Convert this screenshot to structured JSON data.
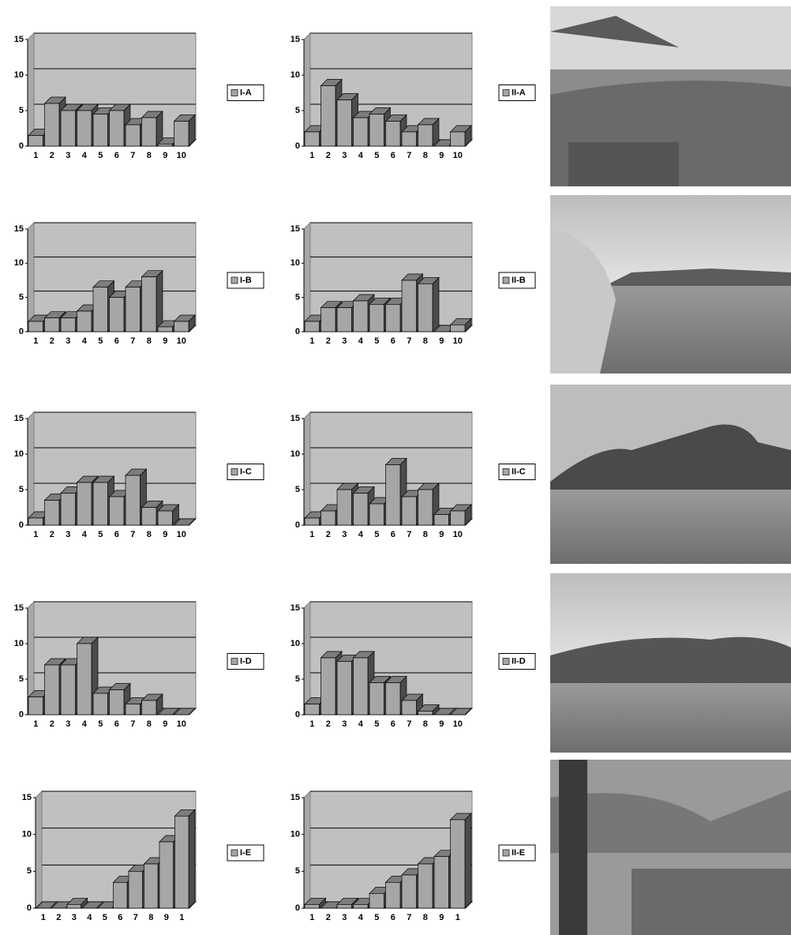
{
  "chart_data": [
    {
      "type": "bar",
      "categories": [
        "1",
        "2",
        "3",
        "4",
        "5",
        "6",
        "7",
        "8",
        "9",
        "10"
      ],
      "series": [
        {
          "name": "I-A",
          "color": "#a6a6a6",
          "values": [
            1.5,
            6,
            5,
            5,
            4.5,
            5,
            3,
            4,
            0.3,
            3.5
          ]
        }
      ],
      "ylim": [
        0,
        15
      ],
      "yticks": [
        0,
        5,
        10,
        15
      ],
      "grid": true
    },
    {
      "type": "bar",
      "categories": [
        "1",
        "2",
        "3",
        "4",
        "5",
        "6",
        "7",
        "8",
        "9",
        "10"
      ],
      "series": [
        {
          "name": "II-A",
          "color": "#a6a6a6",
          "values": [
            2,
            8.5,
            6.5,
            4,
            4.5,
            3.5,
            2,
            3,
            0,
            2
          ]
        }
      ],
      "ylim": [
        0,
        15
      ],
      "yticks": [
        0,
        5,
        10,
        15
      ],
      "grid": true
    },
    {
      "type": "bar",
      "categories": [
        "1",
        "2",
        "3",
        "4",
        "5",
        "6",
        "7",
        "8",
        "9",
        "10"
      ],
      "series": [
        {
          "name": "I-B",
          "color": "#a6a6a6",
          "values": [
            1.5,
            2,
            2,
            3,
            6.5,
            5,
            6.5,
            8,
            0.7,
            1.5
          ]
        }
      ],
      "ylim": [
        0,
        15
      ],
      "yticks": [
        0,
        5,
        10,
        15
      ],
      "grid": true
    },
    {
      "type": "bar",
      "categories": [
        "1",
        "2",
        "3",
        "4",
        "5",
        "6",
        "7",
        "8",
        "9",
        "10"
      ],
      "series": [
        {
          "name": "II-B",
          "color": "#a6a6a6",
          "values": [
            1.5,
            3.5,
            3.5,
            4.5,
            4,
            4,
            7.5,
            7,
            0,
            1
          ]
        }
      ],
      "ylim": [
        0,
        15
      ],
      "yticks": [
        0,
        5,
        10,
        15
      ],
      "grid": true
    },
    {
      "type": "bar",
      "categories": [
        "1",
        "2",
        "3",
        "4",
        "5",
        "6",
        "7",
        "8",
        "9",
        "10"
      ],
      "series": [
        {
          "name": "I-C",
          "color": "#a6a6a6",
          "values": [
            1,
            3.5,
            4.5,
            6,
            6,
            4,
            7,
            2.5,
            2,
            0
          ]
        }
      ],
      "ylim": [
        0,
        15
      ],
      "yticks": [
        0,
        5,
        10,
        15
      ],
      "grid": true
    },
    {
      "type": "bar",
      "categories": [
        "1",
        "2",
        "3",
        "4",
        "5",
        "6",
        "7",
        "8",
        "9",
        "10"
      ],
      "series": [
        {
          "name": "II-C",
          "color": "#a6a6a6",
          "values": [
            1,
            2,
            5,
            4.5,
            3,
            8.5,
            4,
            5,
            1.5,
            2
          ]
        }
      ],
      "ylim": [
        0,
        15
      ],
      "yticks": [
        0,
        5,
        10,
        15
      ],
      "grid": true
    },
    {
      "type": "bar",
      "categories": [
        "1",
        "2",
        "3",
        "4",
        "5",
        "6",
        "7",
        "8",
        "9",
        "10"
      ],
      "series": [
        {
          "name": "I-D",
          "color": "#a6a6a6",
          "values": [
            2.5,
            7,
            7,
            10,
            3,
            3.5,
            1.5,
            2,
            0,
            0
          ]
        }
      ],
      "ylim": [
        0,
        15
      ],
      "yticks": [
        0,
        5,
        10,
        15
      ],
      "grid": true
    },
    {
      "type": "bar",
      "categories": [
        "1",
        "2",
        "3",
        "4",
        "5",
        "6",
        "7",
        "8",
        "9",
        "10"
      ],
      "series": [
        {
          "name": "II-D",
          "color": "#a6a6a6",
          "values": [
            1.5,
            8,
            7.5,
            8,
            4.5,
            4.5,
            2,
            0.5,
            0,
            0
          ]
        }
      ],
      "ylim": [
        0,
        15
      ],
      "yticks": [
        0,
        5,
        10,
        15
      ],
      "grid": true
    },
    {
      "type": "bar",
      "categories": [
        "1",
        "2",
        "3",
        "4",
        "5",
        "6",
        "7",
        "8",
        "9",
        "1"
      ],
      "series": [
        {
          "name": "I-E",
          "color": "#a6a6a6",
          "values": [
            0,
            0,
            0.5,
            0,
            0,
            3.5,
            5,
            6,
            9,
            12.5
          ]
        }
      ],
      "ylim": [
        0,
        15
      ],
      "yticks": [
        0,
        5,
        10,
        15
      ],
      "grid": true
    },
    {
      "type": "bar",
      "categories": [
        "1",
        "2",
        "3",
        "4",
        "5",
        "6",
        "7",
        "8",
        "9",
        "1"
      ],
      "series": [
        {
          "name": "II-E",
          "color": "#a6a6a6",
          "values": [
            0.5,
            0,
            0.5,
            0.5,
            2,
            3.5,
            4.5,
            6,
            7,
            12
          ]
        }
      ],
      "ylim": [
        0,
        15
      ],
      "yticks": [
        0,
        5,
        10,
        15
      ],
      "grid": true
    }
  ]
}
